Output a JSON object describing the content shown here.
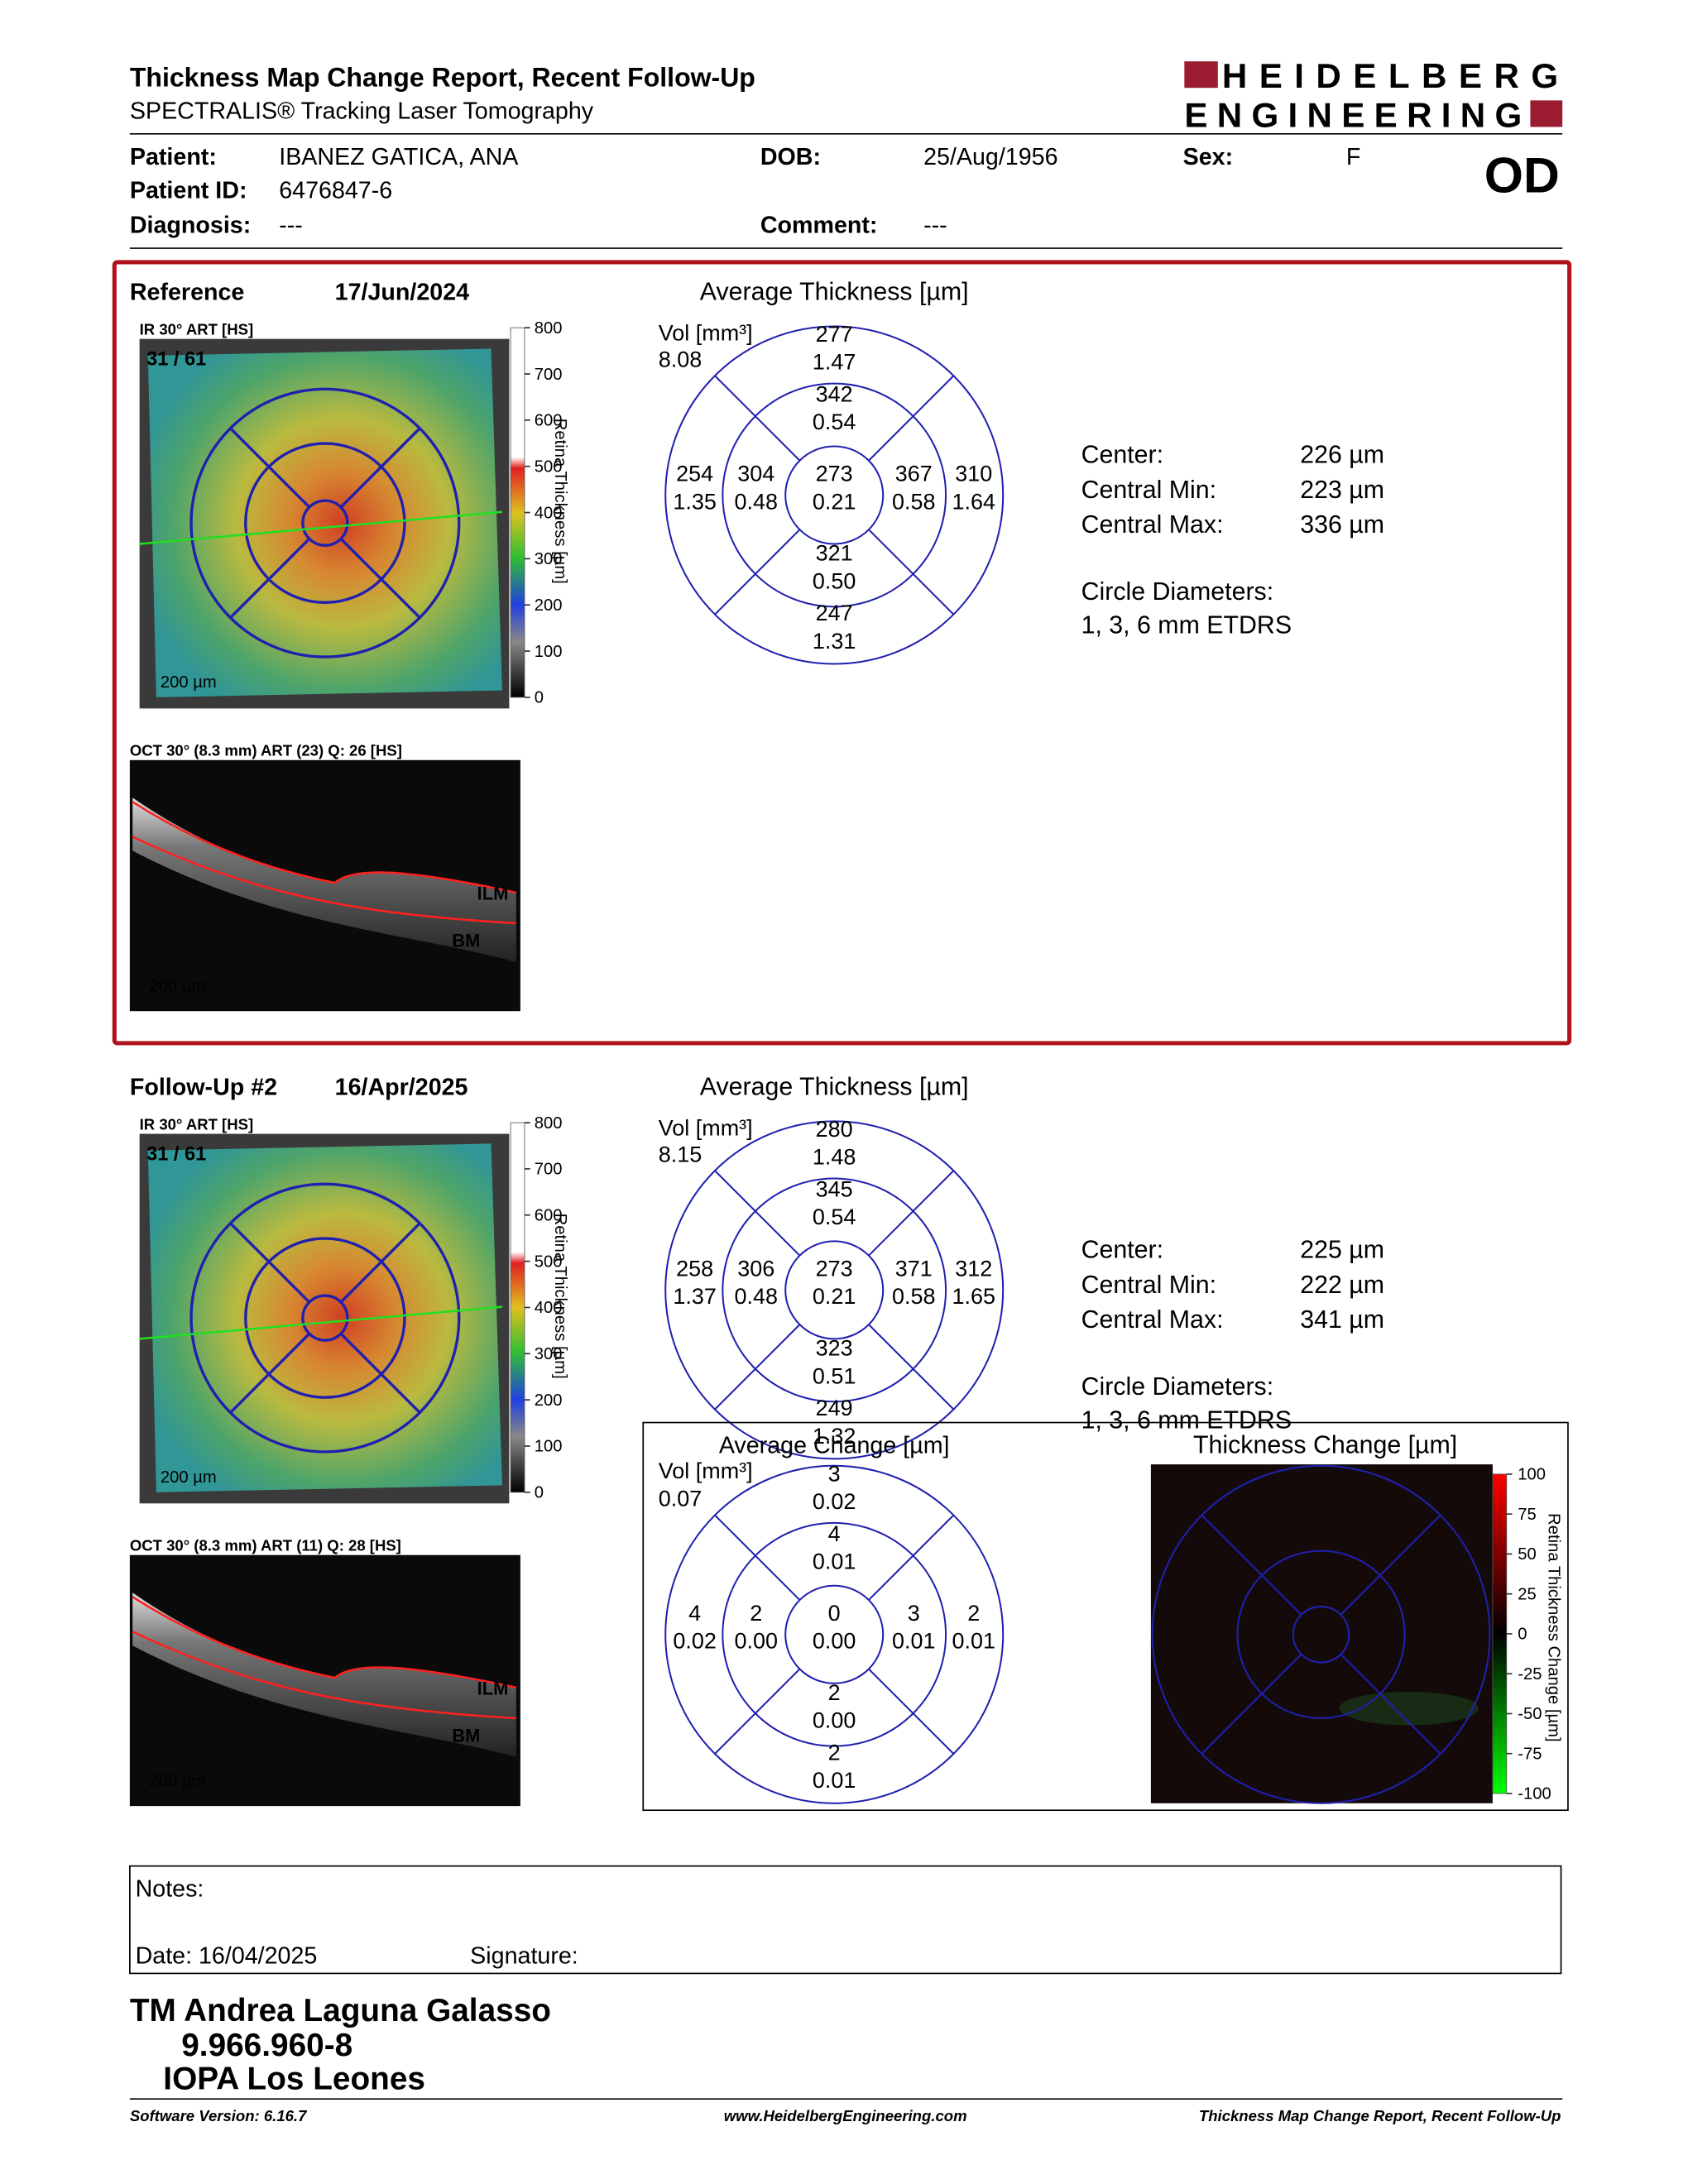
{
  "header": {
    "title": "Thickness Map Change Report, Recent Follow-Up",
    "subtitle": "SPECTRALIS® Tracking Laser Tomography",
    "logo_line1": "HEIDELBERG",
    "logo_line2": "ENGINEERING"
  },
  "patient": {
    "patient_label": "Patient:",
    "patient": "IBANEZ GATICA, ANA",
    "dob_label": "DOB:",
    "dob": "25/Aug/1956",
    "sex_label": "Sex:",
    "sex": "F",
    "eye": "OD",
    "id_label": "Patient ID:",
    "id": "6476847-6",
    "diagnosis_label": "Diagnosis:",
    "diagnosis": "---",
    "comment_label": "Comment:",
    "comment": "---"
  },
  "exams": [
    {
      "label": "Reference",
      "date": "17/Jun/2024",
      "ir_title": "IR 30° ART [HS]",
      "frame": "31 / 61",
      "ir_scale": "200 µm",
      "colorbar_label": "Retina Thickness [µm]",
      "colorbar_ticks": [
        800,
        700,
        600,
        500,
        400,
        300,
        200,
        100,
        0
      ],
      "oct_title": "OCT 30° (8.3 mm) ART (23) Q: 26 [HS]",
      "ilm": "ILM",
      "bm": "BM",
      "oct_scale": "200 µm",
      "grid_title": "Average Thickness [µm]",
      "vol_label": "Vol [mm³]",
      "vol": "8.08",
      "sectors": {
        "outer_top": [
          "277",
          "1.47"
        ],
        "inner_top": [
          "342",
          "0.54"
        ],
        "outer_left": [
          "254",
          "1.35"
        ],
        "inner_left": [
          "304",
          "0.48"
        ],
        "center": [
          "273",
          "0.21"
        ],
        "inner_right": [
          "367",
          "0.58"
        ],
        "outer_right": [
          "310",
          "1.64"
        ],
        "inner_bottom": [
          "321",
          "0.50"
        ],
        "outer_bottom": [
          "247",
          "1.31"
        ]
      },
      "stats": [
        [
          "Center:",
          "226 µm"
        ],
        [
          "Central Min:",
          "223 µm"
        ],
        [
          "Central Max:",
          "336 µm"
        ]
      ],
      "diam_label": "Circle Diameters:",
      "diam": "1, 3, 6 mm ETDRS"
    },
    {
      "label": "Follow-Up #2",
      "date": "16/Apr/2025",
      "ir_title": "IR 30° ART [HS]",
      "frame": "31 / 61",
      "ir_scale": "200 µm",
      "colorbar_label": "Retina Thickness [µm]",
      "colorbar_ticks": [
        800,
        700,
        600,
        500,
        400,
        300,
        200,
        100,
        0
      ],
      "oct_title": "OCT 30° (8.3 mm) ART (11) Q: 28 [HS]",
      "ilm": "ILM",
      "bm": "BM",
      "oct_scale": "200 µm",
      "grid_title": "Average Thickness [µm]",
      "vol_label": "Vol [mm³]",
      "vol": "8.15",
      "sectors": {
        "outer_top": [
          "280",
          "1.48"
        ],
        "inner_top": [
          "345",
          "0.54"
        ],
        "outer_left": [
          "258",
          "1.37"
        ],
        "inner_left": [
          "306",
          "0.48"
        ],
        "center": [
          "273",
          "0.21"
        ],
        "inner_right": [
          "371",
          "0.58"
        ],
        "outer_right": [
          "312",
          "1.65"
        ],
        "inner_bottom": [
          "323",
          "0.51"
        ],
        "outer_bottom": [
          "249",
          "1.32"
        ]
      },
      "stats": [
        [
          "Center:",
          "225 µm"
        ],
        [
          "Central Min:",
          "222 µm"
        ],
        [
          "Central Max:",
          "341 µm"
        ]
      ],
      "diam_label": "Circle Diameters:",
      "diam": "1, 3, 6 mm ETDRS"
    }
  ],
  "change": {
    "grid_title": "Average Change [µm]",
    "vol_label": "Vol [mm³]",
    "vol": "0.07",
    "sectors": {
      "outer_top": [
        "3",
        "0.02"
      ],
      "inner_top": [
        "4",
        "0.01"
      ],
      "outer_left": [
        "4",
        "0.02"
      ],
      "inner_left": [
        "2",
        "0.00"
      ],
      "center": [
        "0",
        "0.00"
      ],
      "inner_right": [
        "3",
        "0.01"
      ],
      "outer_right": [
        "2",
        "0.01"
      ],
      "inner_bottom": [
        "2",
        "0.00"
      ],
      "outer_bottom": [
        "2",
        "0.01"
      ]
    },
    "map_title": "Thickness Change [µm]",
    "colorbar_label": "Retina Thickness Change [µm]",
    "colorbar_ticks": [
      100,
      75,
      50,
      25,
      0,
      -25,
      -50,
      -75,
      -100
    ]
  },
  "notes": {
    "label": "Notes:",
    "date": "Date: 16/04/2025",
    "signature": "Signature:"
  },
  "signer": {
    "name": "TM Andrea Laguna Galasso",
    "id": "9.966.960-8",
    "institution": "IOPA Los Leones"
  },
  "footer": {
    "software": "Software Version: 6.16.7",
    "url": "www.HeidelbergEngineering.com",
    "report": "Thickness Map Change Report, Recent Follow-Up"
  }
}
